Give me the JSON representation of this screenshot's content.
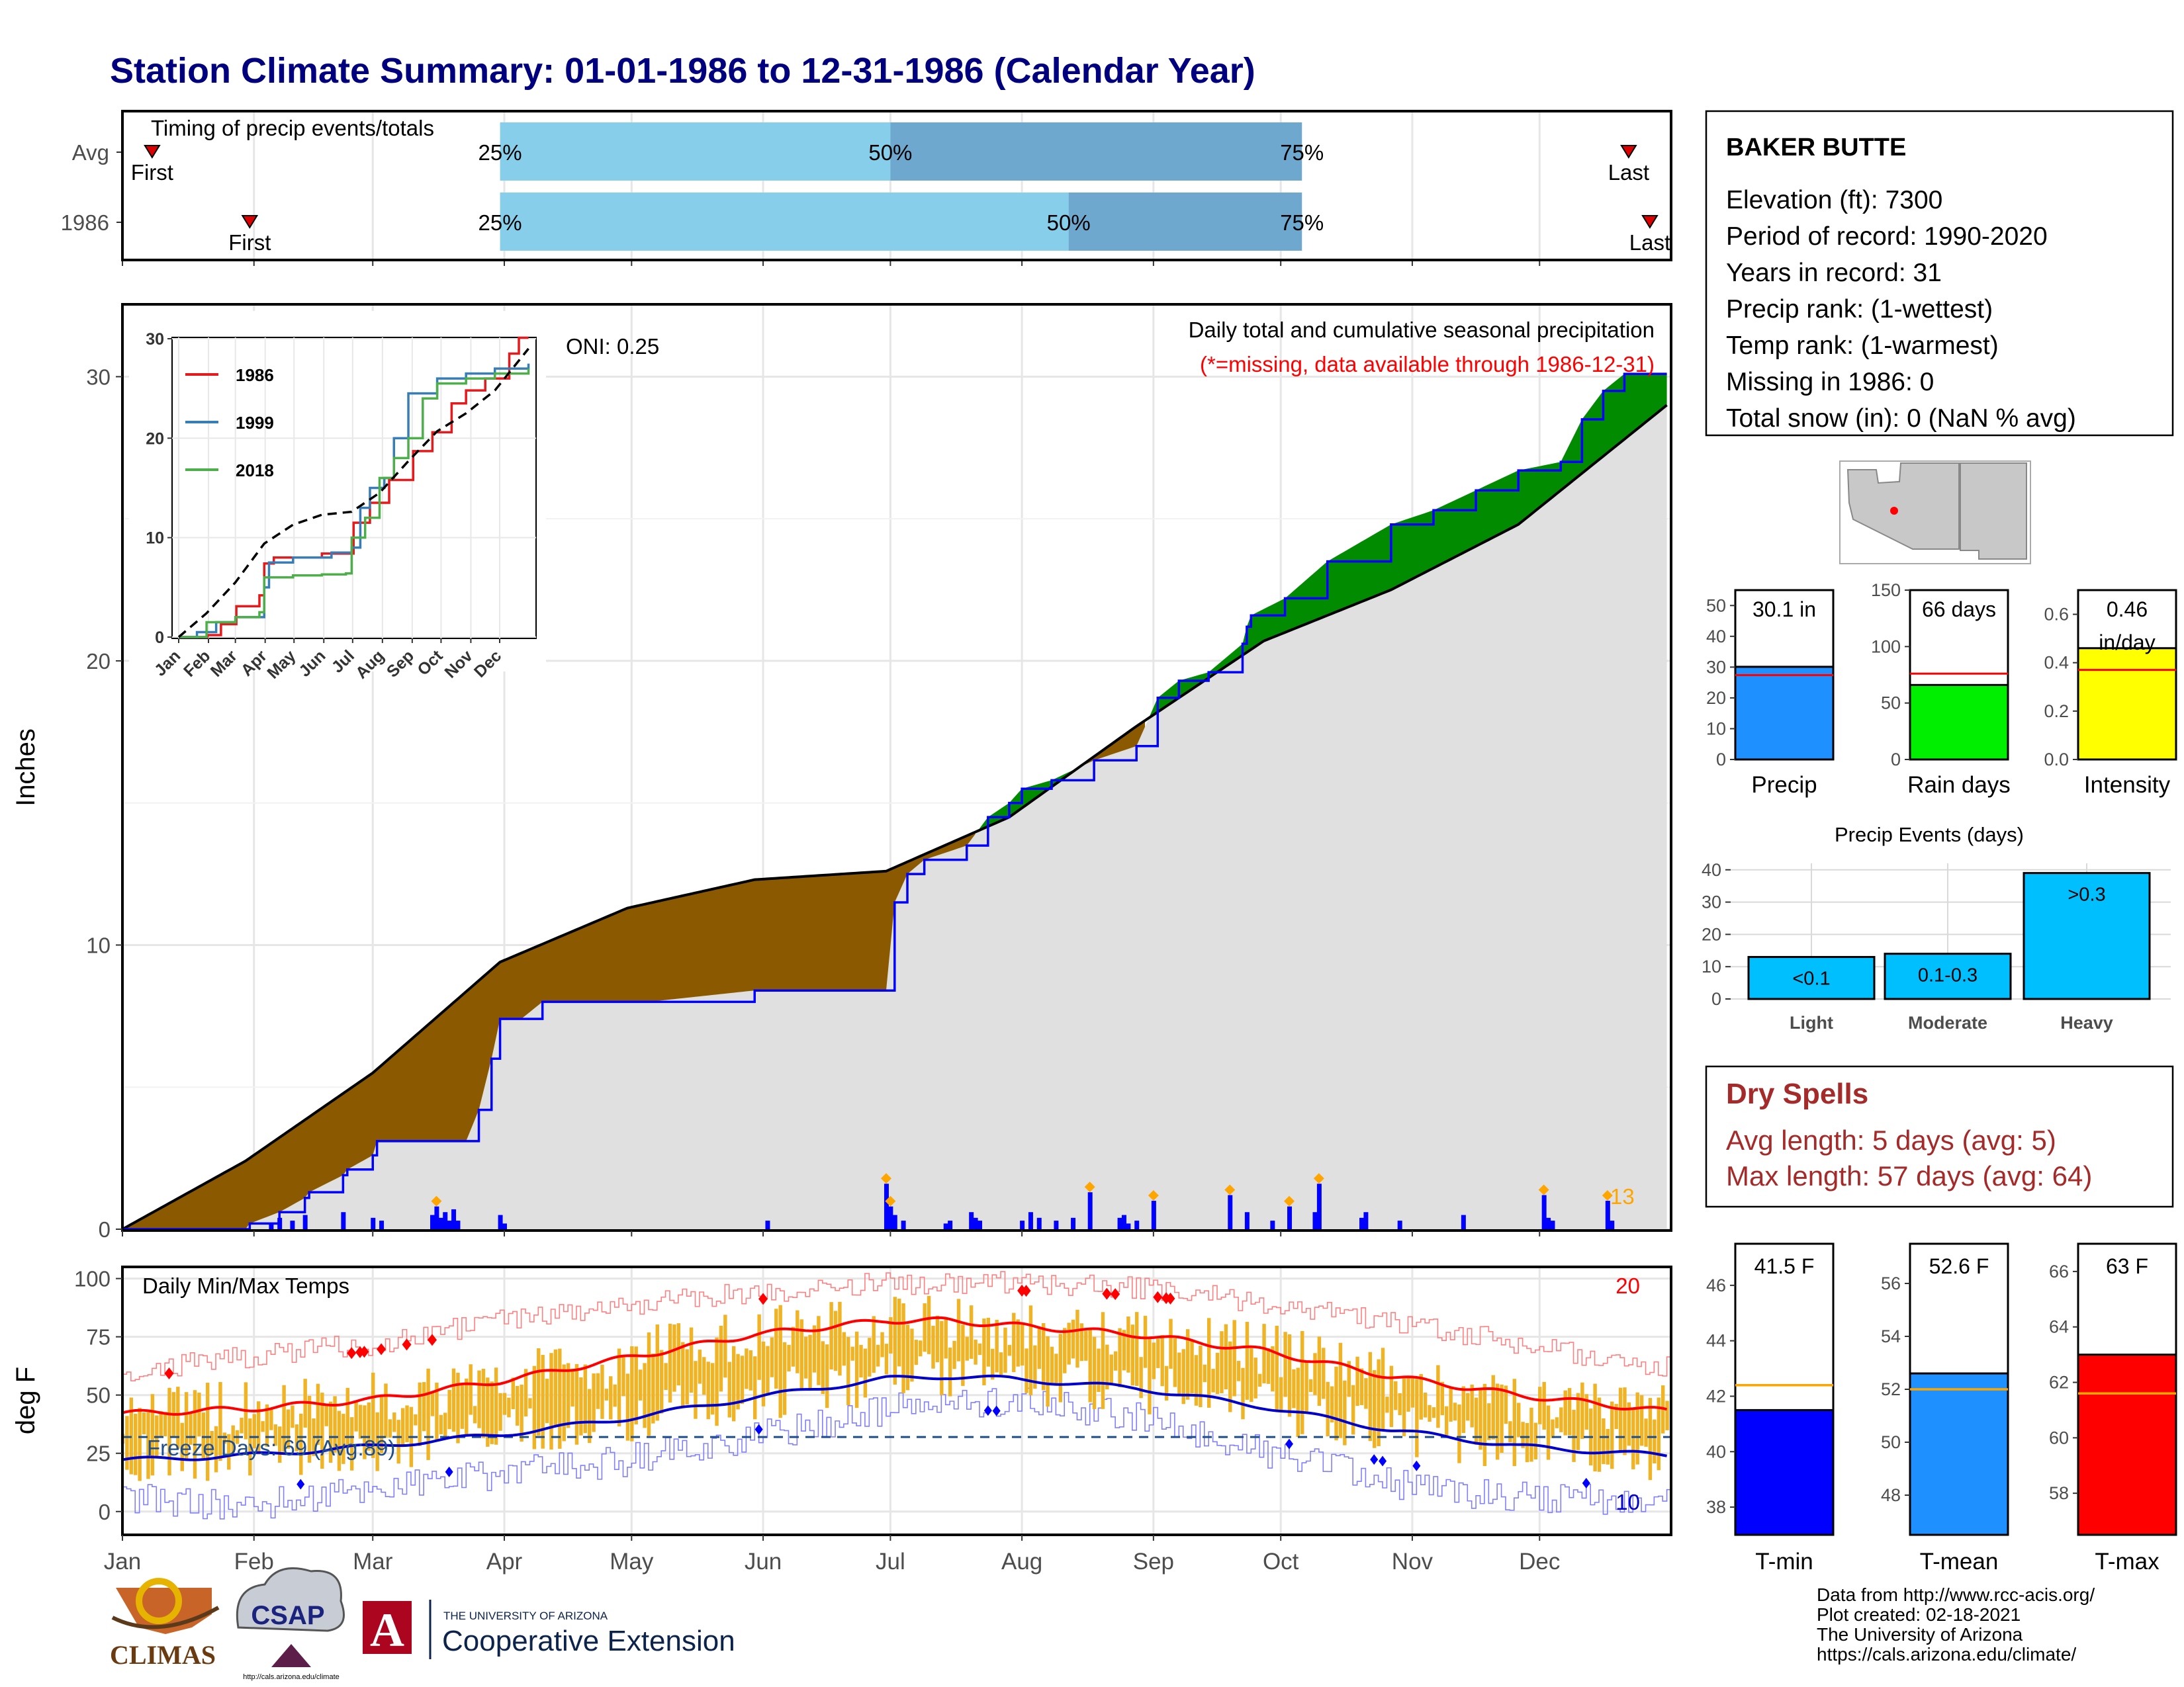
{
  "title": "Station Climate Summary: 01-01-1986 to 12-31-1986 (Calendar Year)",
  "months": [
    "Jan",
    "Feb",
    "Mar",
    "Apr",
    "May",
    "Jun",
    "Jul",
    "Aug",
    "Sep",
    "Oct",
    "Nov",
    "Dec"
  ],
  "timing": {
    "title": "Timing of precip events/totals",
    "rows": [
      {
        "label": "Avg",
        "first_day": 8,
        "last_day": 356,
        "q25_day": 90,
        "q50_day": 182,
        "q75_day": 279,
        "first_label": "First",
        "last_label": "Last",
        "q25_label": "25%",
        "q50_label": "50%",
        "q75_label": "75%"
      },
      {
        "label": "1986",
        "first_day": 31,
        "last_day": 361,
        "q25_day": 90,
        "q50_day": 224,
        "q75_day": 279,
        "first_label": "First",
        "last_label": "Last",
        "q25_label": "25%",
        "q50_label": "50%",
        "q75_label": "75%"
      }
    ]
  },
  "precip_panel": {
    "ylabel": "Inches",
    "yticks": [
      0,
      10,
      20,
      30
    ],
    "ylim": [
      0,
      32.5
    ],
    "oni": "ONI: 0.25",
    "annotation_1": "Daily total and cumulative seasonal precipitation",
    "annotation_2": "(*=missing, data available through 1986-12-31)",
    "max_daily_label": "13"
  },
  "inset": {
    "yticks": [
      0,
      10,
      20,
      30
    ],
    "ylim": [
      0,
      30
    ],
    "series_names": [
      "1986",
      "1999",
      "2018"
    ]
  },
  "temp_panel": {
    "ylabel": "deg F",
    "title": "Daily Min/Max Temps",
    "yticks": [
      0,
      25,
      50,
      75,
      100
    ],
    "ylim": [
      -10,
      105
    ],
    "freeze_label": "Freeze Days: 69 (Avg:89)",
    "freeze_line": 32,
    "max_label": "20",
    "min_label": "10"
  },
  "station": {
    "name": "BAKER BUTTE",
    "lines": [
      "Elevation (ft): 7300",
      "Period of record: 1990-2020",
      "Years in record: 31",
      "Precip rank:  (1-wettest)",
      "Temp rank:  (1-warmest)",
      "Missing in 1986: 0",
      "Total snow (in): 0 (NaN % avg)"
    ]
  },
  "mini_bars": [
    {
      "label": "Precip",
      "value": 30.1,
      "avg": 27.4,
      "value_label": "30.1 in",
      "ymax": 55,
      "yticks": [
        0,
        10,
        20,
        30,
        40,
        50
      ],
      "color": "#1e90ff"
    },
    {
      "label": "Rain days",
      "value": 66,
      "avg": 76,
      "value_label": "66 days",
      "ymax": 150,
      "yticks": [
        0,
        50,
        100,
        150
      ],
      "color": "#00ee00"
    },
    {
      "label": "Intensity",
      "value": 0.46,
      "avg": 0.37,
      "value_label": "0.46",
      "value_label_2": "in/day",
      "ymax": 0.7,
      "yticks": [
        0.0,
        0.2,
        0.4,
        0.6
      ],
      "tick_format": "0.0",
      "color": "#ffff00"
    }
  ],
  "events": {
    "title": "Precip Events (days)",
    "yticks": [
      0,
      10,
      20,
      30,
      40
    ],
    "ymax": 42,
    "categories": [
      "Light",
      "Moderate",
      "Heavy"
    ],
    "values": [
      13,
      14,
      39
    ],
    "bar_labels": [
      "<0.1",
      "0.1-0.3",
      ">0.3"
    ],
    "color": "#00bfff"
  },
  "dry_spells": {
    "title": "Dry Spells",
    "line_1": "Avg length: 5 days (avg: 5)",
    "line_2": "Max length: 57 days (avg: 64)"
  },
  "temp_bars": [
    {
      "label": "T-min",
      "value": 41.5,
      "avg": 42.4,
      "value_label": "41.5 F",
      "ymin": 37,
      "ymax": 47.5,
      "yticks": [
        38,
        40,
        42,
        44,
        46
      ],
      "color": "#0000ff"
    },
    {
      "label": "T-mean",
      "value": 52.6,
      "avg": 52.0,
      "value_label": "52.6 F",
      "ymin": 46.5,
      "ymax": 57.5,
      "yticks": [
        48,
        50,
        52,
        54,
        56
      ],
      "color": "#1e90ff"
    },
    {
      "label": "T-max",
      "value": 63.0,
      "avg": 61.6,
      "value_label": "63 F",
      "ymin": 56.5,
      "ymax": 67,
      "yticks": [
        58,
        60,
        62,
        64,
        66
      ],
      "color": "#ff0000"
    }
  ],
  "credits": {
    "lines": [
      "Data from http://www.rcc-acis.org/",
      "Plot created: 02-18-2021",
      "The University of Arizona",
      "https://cals.arizona.edu/climate/"
    ]
  },
  "logos": {
    "climas": "CLIMAS",
    "csap": "CSAP",
    "csap_url": "http://cals.arizona.edu/climate",
    "ua_letter": "A",
    "ua_line_1": "THE UNIVERSITY OF ARIZONA",
    "ua_line_2": "Cooperative Extension"
  },
  "chart_data": [
    {
      "type": "area",
      "title": "Daily total and cumulative seasonal precipitation",
      "ylabel": "Inches",
      "x_unit": "day of year",
      "ylim": [
        0,
        32.5
      ],
      "series": [
        {
          "name": "cumulative 1986",
          "x": [
            1,
            30,
            31,
            38,
            44,
            45,
            53,
            54,
            60,
            61,
            82,
            85,
            88,
            90,
            95,
            100,
            125,
            150,
            181,
            183,
            186,
            190,
            200,
            205,
            210,
            213,
            220,
            230,
            240,
            245,
            250,
            257,
            265,
            266,
            267,
            275,
            285,
            300,
            310,
            320,
            330,
            340,
            345,
            350,
            355,
            365
          ],
          "y": [
            0,
            0,
            0.2,
            0.6,
            1.1,
            1.3,
            1.9,
            2.1,
            2.6,
            3.1,
            3.1,
            4.2,
            6.0,
            7.4,
            7.4,
            8.0,
            8.0,
            8.4,
            8.4,
            11.5,
            12.5,
            13.0,
            13.5,
            14.5,
            15.0,
            15.5,
            15.8,
            16.5,
            17.0,
            18.7,
            19.3,
            19.6,
            20.6,
            21.2,
            21.6,
            22.2,
            23.5,
            24.8,
            25.3,
            26.0,
            26.7,
            27.0,
            28.5,
            29.5,
            30.1,
            30.1
          ]
        },
        {
          "name": "average cumulative",
          "x": [
            1,
            30,
            60,
            90,
            120,
            150,
            181,
            210,
            240,
            270,
            300,
            330,
            365
          ],
          "y": [
            0,
            2.4,
            5.5,
            9.4,
            11.3,
            12.3,
            12.6,
            14.5,
            17.7,
            20.7,
            22.5,
            24.8,
            29.0
          ]
        },
        {
          "name": "daily precip",
          "x": [
            36,
            38,
            41,
            44,
            53,
            60,
            62,
            74,
            75,
            76,
            77,
            78,
            79,
            80,
            90,
            91,
            153,
            181,
            182,
            183,
            185,
            195,
            196,
            201,
            202,
            203,
            213,
            215,
            217,
            221,
            225,
            229,
            236,
            237,
            238,
            240,
            244,
            262,
            266,
            272,
            276,
            282,
            283,
            293,
            294,
            302,
            317,
            336,
            337,
            338,
            351,
            352
          ],
          "y": [
            0.2,
            0.4,
            0.3,
            0.5,
            0.6,
            0.4,
            0.3,
            0.5,
            0.8,
            0.4,
            0.6,
            0.3,
            0.7,
            0.3,
            0.5,
            0.2,
            0.3,
            1.6,
            0.8,
            0.5,
            0.3,
            0.2,
            0.3,
            0.6,
            0.4,
            0.3,
            0.3,
            0.6,
            0.4,
            0.3,
            0.4,
            1.3,
            0.4,
            0.5,
            0.2,
            0.3,
            1.0,
            1.2,
            0.6,
            0.3,
            0.8,
            0.6,
            1.6,
            0.4,
            0.6,
            0.3,
            0.5,
            1.2,
            0.4,
            0.3,
            1.0,
            0.3
          ]
        }
      ]
    },
    {
      "type": "line",
      "title": "",
      "x_unit": "day of year",
      "ylim": [
        0,
        30
      ],
      "series": [
        {
          "name": "1986",
          "x": [
            1,
            30,
            31,
            45,
            61,
            85,
            90,
            100,
            150,
            181,
            183,
            200,
            220,
            245,
            265,
            285,
            300,
            320,
            345,
            355,
            365
          ],
          "y": [
            0,
            0,
            0.2,
            1.3,
            3.1,
            4.2,
            7.4,
            8.0,
            8.4,
            8.4,
            11.5,
            13.5,
            15.8,
            18.7,
            20.6,
            23.5,
            24.8,
            26.0,
            28.5,
            30.1,
            30.1
          ]
        },
        {
          "name": "1999",
          "x": [
            1,
            20,
            40,
            60,
            90,
            95,
            120,
            160,
            181,
            190,
            200,
            215,
            225,
            240,
            270,
            300,
            330,
            365
          ],
          "y": [
            0,
            0.5,
            1.5,
            2.0,
            5.0,
            7.5,
            8.0,
            8.5,
            9.0,
            13.0,
            15.0,
            16.0,
            20.0,
            24.5,
            26.0,
            26.5,
            27.0,
            27.5
          ]
        },
        {
          "name": "2018",
          "x": [
            1,
            30,
            60,
            85,
            90,
            120,
            150,
            175,
            181,
            195,
            210,
            225,
            240,
            255,
            270,
            300,
            330,
            365
          ],
          "y": [
            0,
            1.5,
            2.0,
            2.5,
            6.0,
            6.2,
            6.3,
            6.4,
            10.0,
            12.0,
            16.0,
            18.0,
            20.0,
            24.0,
            25.5,
            26.0,
            26.5,
            27.0
          ]
        },
        {
          "name": "average",
          "x": [
            1,
            30,
            60,
            90,
            120,
            150,
            181,
            210,
            240,
            270,
            300,
            330,
            365
          ],
          "y": [
            0,
            2.4,
            5.5,
            9.4,
            11.3,
            12.3,
            12.6,
            14.5,
            17.7,
            20.7,
            22.5,
            24.8,
            29.0
          ]
        }
      ]
    },
    {
      "type": "line",
      "title": "Daily Min/Max Temps",
      "ylabel": "deg F",
      "x_unit": "day of year",
      "ylim": [
        -10,
        105
      ],
      "series": [
        {
          "name": "avg max",
          "x": [
            1,
            30,
            60,
            90,
            120,
            150,
            181,
            195,
            210,
            240,
            270,
            300,
            330,
            365
          ],
          "y": [
            42,
            44,
            48,
            56,
            66,
            76,
            82,
            82,
            80,
            76,
            69,
            58,
            50,
            43
          ]
        },
        {
          "name": "avg min",
          "x": [
            1,
            30,
            60,
            90,
            120,
            150,
            181,
            195,
            210,
            240,
            270,
            300,
            330,
            365
          ],
          "y": [
            22,
            24,
            28,
            33,
            40,
            49,
            57,
            58,
            57,
            53,
            45,
            35,
            28,
            24
          ]
        },
        {
          "name": "record max",
          "x": [
            1,
            30,
            60,
            90,
            120,
            150,
            181,
            210,
            240,
            270,
            300,
            330,
            365
          ],
          "y": [
            60,
            66,
            72,
            82,
            88,
            94,
            98,
            98,
            96,
            90,
            82,
            72,
            62
          ]
        },
        {
          "name": "record min",
          "x": [
            1,
            30,
            60,
            90,
            120,
            150,
            181,
            210,
            240,
            270,
            300,
            330,
            365
          ],
          "y": [
            6,
            2,
            10,
            16,
            22,
            32,
            44,
            48,
            40,
            26,
            12,
            6,
            4
          ]
        }
      ]
    },
    {
      "type": "bar",
      "title": "Precip Events (days)",
      "categories": [
        "Light",
        "Moderate",
        "Heavy"
      ],
      "values": [
        13,
        14,
        39
      ],
      "ylim": [
        0,
        42
      ]
    }
  ]
}
